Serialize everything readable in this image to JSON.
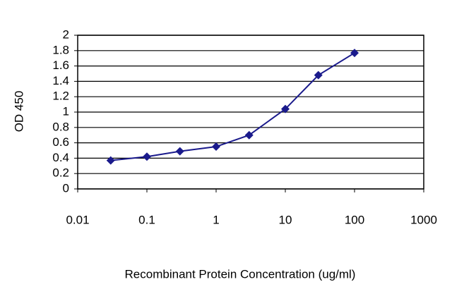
{
  "chart_data": {
    "type": "line",
    "x_label": "Recombinant Protein Concentration (ug/ml)",
    "y_label": "OD 450",
    "x": [
      0.03,
      0.1,
      0.3,
      1,
      3,
      10,
      30,
      100
    ],
    "series": [
      {
        "color": "#1a1a8c",
        "values": [
          0.37,
          0.42,
          0.49,
          0.55,
          0.7,
          1.04,
          1.48,
          1.77
        ]
      }
    ],
    "xscale": "log",
    "xlim": [
      0.01,
      1000
    ],
    "xticks": [
      0.01,
      0.1,
      1,
      10,
      100,
      1000
    ],
    "ylim": [
      0,
      2
    ],
    "yticks": [
      0,
      0.2,
      0.4,
      0.6,
      0.8,
      1,
      1.2,
      1.4,
      1.6,
      1.8,
      2
    ],
    "grid": true
  }
}
